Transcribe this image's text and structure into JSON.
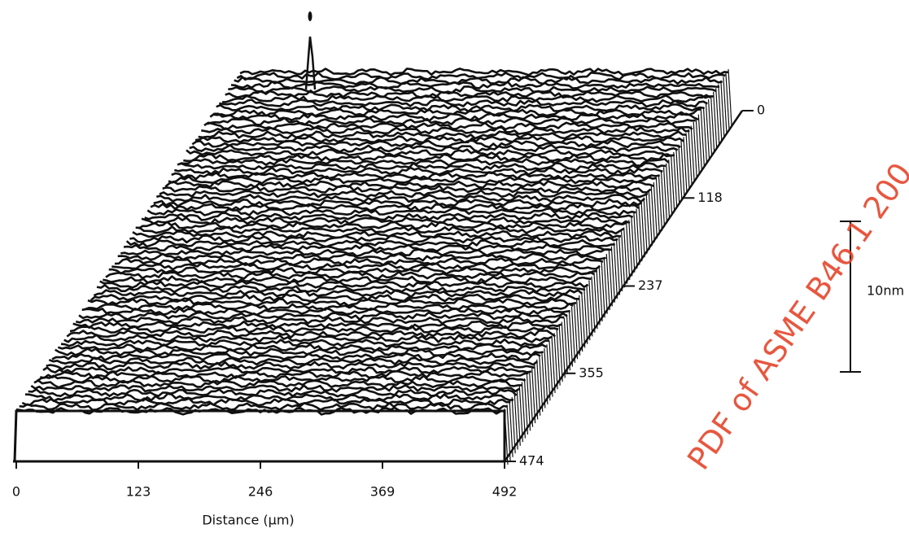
{
  "chart_data": {
    "type": "surface",
    "xlabel": "Distance (μm)",
    "xlim": [
      0,
      492
    ],
    "xticks": [
      0,
      123,
      246,
      369,
      492
    ],
    "ylim": [
      0,
      474
    ],
    "yticks": [
      0,
      118,
      237,
      355,
      474
    ],
    "scale_bar_label": "10nm",
    "watermark": "PDF of ASME B46.1 200"
  }
}
